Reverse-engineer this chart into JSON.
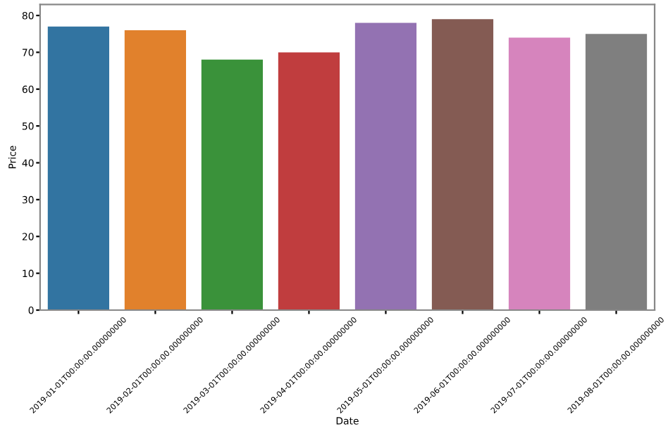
{
  "chart_data": {
    "type": "bar",
    "xlabel": "Date",
    "ylabel": "Price",
    "categories": [
      "2019-01-01T00:00:00.000000000",
      "2019-02-01T00:00:00.000000000",
      "2019-03-01T00:00:00.000000000",
      "2019-04-01T00:00:00.000000000",
      "2019-05-01T00:00:00.000000000",
      "2019-06-01T00:00:00.000000000",
      "2019-07-01T00:00:00.000000000",
      "2019-08-01T00:00:00.000000000"
    ],
    "values": [
      77,
      76,
      68,
      70,
      78,
      79,
      74,
      75
    ],
    "colors": [
      "#3274a1",
      "#e1812c",
      "#3a923a",
      "#c03d3e",
      "#9372b2",
      "#845b53",
      "#d684bd",
      "#7f7f7f"
    ],
    "ylim": [
      0,
      83
    ],
    "yticks": [
      0,
      10,
      20,
      30,
      40,
      50,
      60,
      70,
      80
    ],
    "grid": false,
    "legend": false
  }
}
